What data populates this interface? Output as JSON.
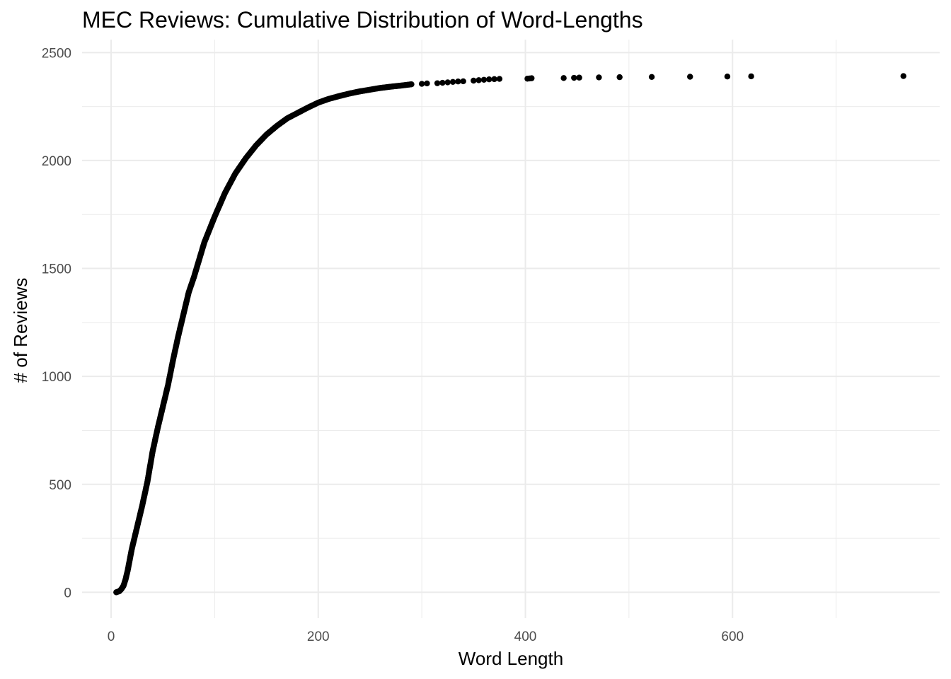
{
  "chart_data": {
    "type": "scatter",
    "title": "MEC Reviews: Cumulative Distribution of Word-Lengths",
    "xlabel": "Word Length",
    "ylabel": "# of Reviews",
    "xlim": [
      -28,
      800
    ],
    "ylim": [
      -120,
      2560
    ],
    "x_ticks": [
      0,
      200,
      400,
      600
    ],
    "x_tick_labels": [
      "0",
      "200",
      "400",
      "600"
    ],
    "x_minor_ticks": [
      100,
      300,
      500,
      700
    ],
    "y_ticks": [
      0,
      500,
      1000,
      1500,
      2000,
      2500
    ],
    "y_tick_labels": [
      "0",
      "500",
      "1000",
      "1500",
      "2000",
      "2500"
    ],
    "y_minor_ticks": [
      250,
      750,
      1250,
      1750,
      2250
    ],
    "grid": true,
    "legend": "none",
    "point_color": "#000000",
    "curve": [
      [
        5,
        0
      ],
      [
        8,
        5
      ],
      [
        10,
        15
      ],
      [
        12,
        30
      ],
      [
        14,
        60
      ],
      [
        16,
        100
      ],
      [
        18,
        150
      ],
      [
        20,
        200
      ],
      [
        25,
        300
      ],
      [
        30,
        400
      ],
      [
        35,
        510
      ],
      [
        40,
        650
      ],
      [
        45,
        760
      ],
      [
        50,
        860
      ],
      [
        55,
        960
      ],
      [
        60,
        1080
      ],
      [
        65,
        1190
      ],
      [
        70,
        1290
      ],
      [
        75,
        1390
      ],
      [
        80,
        1460
      ],
      [
        85,
        1540
      ],
      [
        90,
        1620
      ],
      [
        95,
        1680
      ],
      [
        100,
        1740
      ],
      [
        110,
        1850
      ],
      [
        120,
        1940
      ],
      [
        130,
        2010
      ],
      [
        140,
        2070
      ],
      [
        150,
        2120
      ],
      [
        160,
        2160
      ],
      [
        170,
        2195
      ],
      [
        180,
        2220
      ],
      [
        190,
        2245
      ],
      [
        200,
        2268
      ],
      [
        210,
        2285
      ],
      [
        220,
        2298
      ],
      [
        230,
        2310
      ],
      [
        240,
        2320
      ],
      [
        250,
        2328
      ],
      [
        260,
        2336
      ],
      [
        270,
        2342
      ],
      [
        280,
        2347
      ],
      [
        290,
        2353
      ]
    ],
    "tail": [
      [
        300,
        2355
      ],
      [
        305,
        2357
      ],
      [
        315,
        2358
      ],
      [
        320,
        2360
      ],
      [
        325,
        2362
      ],
      [
        330,
        2364
      ],
      [
        335,
        2366
      ],
      [
        340,
        2367
      ],
      [
        350,
        2370
      ],
      [
        355,
        2372
      ],
      [
        360,
        2374
      ],
      [
        365,
        2376
      ],
      [
        370,
        2377
      ],
      [
        375,
        2378
      ],
      [
        402,
        2379
      ],
      [
        404,
        2380
      ],
      [
        406,
        2381
      ],
      [
        437,
        2382
      ],
      [
        447,
        2383
      ],
      [
        452,
        2384
      ],
      [
        471,
        2385
      ],
      [
        491,
        2386
      ],
      [
        522,
        2387
      ],
      [
        559,
        2388
      ],
      [
        595,
        2389
      ],
      [
        618,
        2390
      ],
      [
        765,
        2391
      ]
    ]
  }
}
